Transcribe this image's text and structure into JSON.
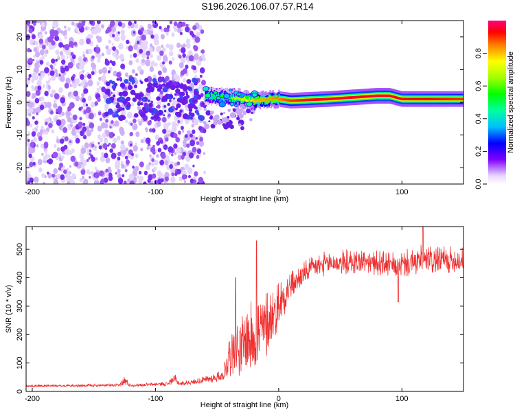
{
  "title": "S196.2026.106.07.57.R14",
  "chart_data": [
    {
      "type": "heatmap",
      "name": "spectrogram",
      "xlabel": "Height of straight line (km)",
      "ylabel": "Frequency (Hz)",
      "xlim": [
        -205,
        150
      ],
      "ylim": [
        -25,
        25
      ],
      "xticks": [
        -200,
        -100,
        0,
        100
      ],
      "yticks": [
        -20,
        -10,
        0,
        10,
        20
      ],
      "colorbar": {
        "label": "Normalized spectral amplitude",
        "range": [
          0,
          1
        ],
        "ticks": [
          "0.0",
          "0.2",
          "0.4",
          "0.6",
          "0.8"
        ]
      },
      "noise_region": {
        "x_start": -205,
        "x_end": -60,
        "freq_spread": 25
      },
      "transition_region": {
        "x_start": -60,
        "x_end": -20
      },
      "signal_track": [
        {
          "x": -60,
          "freq": 2.0,
          "amp": 0.5
        },
        {
          "x": -40,
          "freq": 1.5,
          "amp": 0.6
        },
        {
          "x": -20,
          "freq": 0.5,
          "amp": 0.8
        },
        {
          "x": 0,
          "freq": 1.0,
          "amp": 0.85
        },
        {
          "x": 10,
          "freq": 0.5,
          "amp": 0.9
        },
        {
          "x": 40,
          "freq": 1.0,
          "amp": 0.95
        },
        {
          "x": 80,
          "freq": 2.0,
          "amp": 0.95
        },
        {
          "x": 90,
          "freq": 2.0,
          "amp": 0.95
        },
        {
          "x": 100,
          "freq": 1.0,
          "amp": 0.95
        },
        {
          "x": 150,
          "freq": 1.0,
          "amp": 0.9
        }
      ]
    },
    {
      "type": "line",
      "name": "snr",
      "xlabel": "Height of straight line (km)",
      "ylabel": "SNR (10 * v/v)",
      "xlim": [
        -205,
        150
      ],
      "ylim": [
        0,
        580
      ],
      "xticks": [
        -200,
        -100,
        0,
        100
      ],
      "yticks": [
        0,
        100,
        200,
        300,
        400,
        500
      ],
      "color": "#ee3030",
      "series": [
        {
          "name": "SNR",
          "envelope": [
            {
              "x": -205,
              "base": 18,
              "amp": 8
            },
            {
              "x": -130,
              "base": 20,
              "amp": 10
            },
            {
              "x": -125,
              "base": 30,
              "amp": 40
            },
            {
              "x": -120,
              "base": 20,
              "amp": 10
            },
            {
              "x": -90,
              "base": 25,
              "amp": 15
            },
            {
              "x": -85,
              "base": 40,
              "amp": 40
            },
            {
              "x": -80,
              "base": 25,
              "amp": 15
            },
            {
              "x": -62,
              "base": 35,
              "amp": 25
            },
            {
              "x": -45,
              "base": 50,
              "amp": 40
            },
            {
              "x": -40,
              "base": 120,
              "amp": 200
            },
            {
              "x": -30,
              "base": 130,
              "amp": 220
            },
            {
              "x": -18,
              "base": 160,
              "amp": 280
            },
            {
              "x": -10,
              "base": 200,
              "amp": 250
            },
            {
              "x": 0,
              "base": 280,
              "amp": 180
            },
            {
              "x": 10,
              "base": 360,
              "amp": 100
            },
            {
              "x": 25,
              "base": 420,
              "amp": 80
            },
            {
              "x": 40,
              "base": 440,
              "amp": 90
            },
            {
              "x": 70,
              "base": 445,
              "amp": 90
            },
            {
              "x": 95,
              "base": 430,
              "amp": 90
            },
            {
              "x": 115,
              "base": 445,
              "amp": 110
            },
            {
              "x": 150,
              "base": 450,
              "amp": 90
            }
          ],
          "features": [
            {
              "x": -18,
              "value": 530
            },
            {
              "x": -35,
              "value": 400
            },
            {
              "x": 97,
              "value": 315
            },
            {
              "x": 117,
              "value": 580
            }
          ]
        }
      ]
    }
  ]
}
